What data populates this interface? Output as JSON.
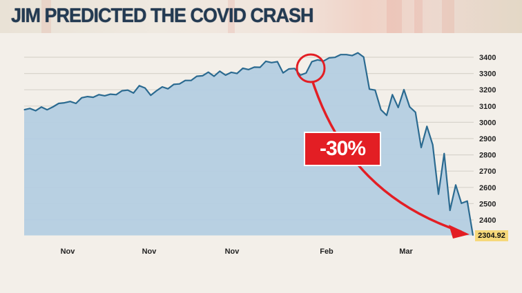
{
  "title": "JIM PREDICTED THE COVID CRASH",
  "colors": {
    "line": "#2b6a90",
    "fill": "#b4cee2",
    "annotation": "#e31e24",
    "title": "#233a52",
    "last_value_bg": "#f6d87a"
  },
  "annotation": {
    "change_label": "-30%"
  },
  "chart_data": {
    "type": "area",
    "title": "",
    "xlabel": "",
    "ylabel": "",
    "x_tick_labels": [
      "Nov",
      "Nov",
      "Nov",
      "Feb",
      "Mar"
    ],
    "y_ticks": [
      2400,
      2500,
      2600,
      2700,
      2800,
      2900,
      3000,
      3100,
      3200,
      3300,
      3400
    ],
    "ylim": [
      2304.92,
      3400
    ],
    "grid": true,
    "last_value": "2304.92",
    "values": [
      3077,
      3085,
      3071,
      3094,
      3077,
      3095,
      3116,
      3120,
      3128,
      3116,
      3151,
      3158,
      3154,
      3170,
      3163,
      3173,
      3170,
      3194,
      3198,
      3180,
      3225,
      3211,
      3166,
      3194,
      3218,
      3206,
      3233,
      3236,
      3257,
      3257,
      3283,
      3286,
      3308,
      3283,
      3314,
      3290,
      3307,
      3300,
      3332,
      3324,
      3339,
      3338,
      3375,
      3367,
      3373,
      3304,
      3328,
      3331,
      3290,
      3303,
      3373,
      3384,
      3376,
      3396,
      3399,
      3416,
      3416,
      3410,
      3427,
      3401,
      3204,
      3198,
      3077,
      3043,
      3170,
      3091,
      3201,
      3095,
      3062,
      2845,
      2975,
      2862,
      2558,
      2808,
      2459,
      2615,
      2502,
      2516,
      2304.92
    ]
  }
}
